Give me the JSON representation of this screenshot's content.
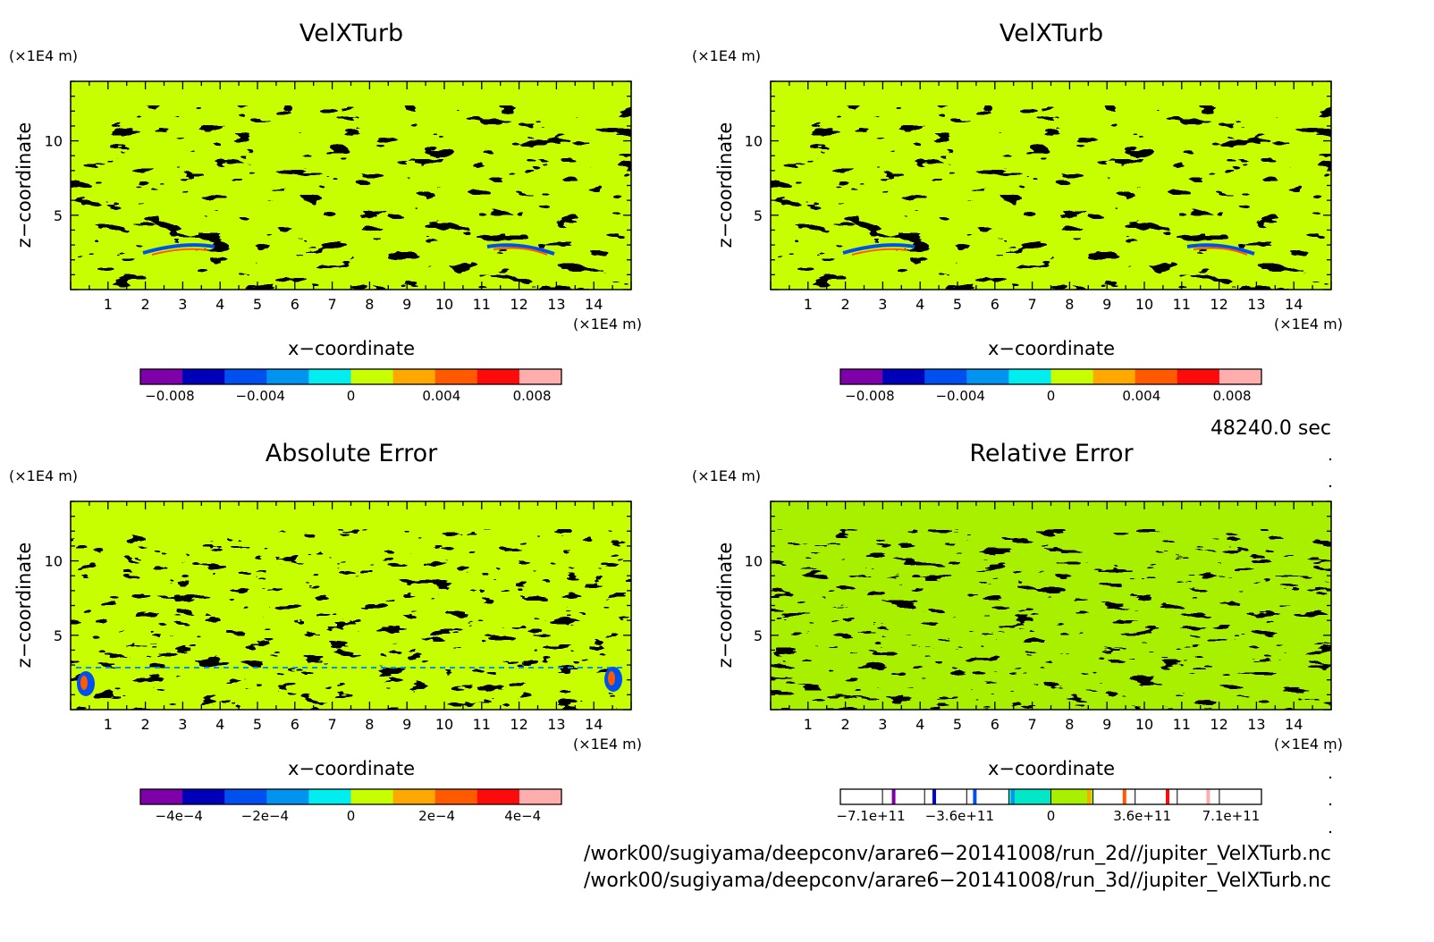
{
  "chart_data": [
    {
      "type": "heatmap",
      "title": "VelXTurb",
      "xlabel": "x−coordinate",
      "ylabel": "z−coordinate",
      "x_unit": "(×1E4 m)",
      "y_unit": "(×1E4 m)",
      "xlim": [
        0,
        15
      ],
      "ylim": [
        0,
        14
      ],
      "x_ticks": [
        "1",
        "2",
        "3",
        "4",
        "5",
        "6",
        "7",
        "8",
        "9",
        "10",
        "11",
        "12",
        "13",
        "14"
      ],
      "y_ticks": [
        "5",
        "10"
      ],
      "colorbar": {
        "ticks": [
          {
            "v": -0.008,
            "label": "−0.008"
          },
          {
            "v": -0.004,
            "label": "−0.004"
          },
          {
            "v": 0,
            "label": "0"
          },
          {
            "v": 0.004,
            "label": "0.004"
          },
          {
            "v": 0.008,
            "label": "0.008"
          }
        ],
        "range": [
          -0.0093,
          0.0093
        ],
        "colors": [
          "#7d00a8",
          "#0000b8",
          "#0050f0",
          "#0094f0",
          "#00eef0",
          "#c8ff00",
          "#ffa800",
          "#ff5a00",
          "#ff0a0a",
          "#ffadad"
        ]
      },
      "dominant_color": "#c8ff00",
      "secondary_color": "#00eef0"
    },
    {
      "type": "heatmap",
      "title": "VelXTurb",
      "xlabel": "x−coordinate",
      "ylabel": "z−coordinate",
      "x_unit": "(×1E4 m)",
      "y_unit": "(×1E4 m)",
      "xlim": [
        0,
        15
      ],
      "ylim": [
        0,
        14
      ],
      "x_ticks": [
        "1",
        "2",
        "3",
        "4",
        "5",
        "6",
        "7",
        "8",
        "9",
        "10",
        "11",
        "12",
        "13",
        "14"
      ],
      "y_ticks": [
        "5",
        "10"
      ],
      "colorbar": {
        "ticks": [
          {
            "v": -0.008,
            "label": "−0.008"
          },
          {
            "v": -0.004,
            "label": "−0.004"
          },
          {
            "v": 0,
            "label": "0"
          },
          {
            "v": 0.004,
            "label": "0.004"
          },
          {
            "v": 0.008,
            "label": "0.008"
          }
        ],
        "range": [
          -0.0093,
          0.0093
        ],
        "colors": [
          "#7d00a8",
          "#0000b8",
          "#0050f0",
          "#0094f0",
          "#00eef0",
          "#c8ff00",
          "#ffa800",
          "#ff5a00",
          "#ff0a0a",
          "#ffadad"
        ]
      },
      "dominant_color": "#c8ff00",
      "secondary_color": "#00eef0"
    },
    {
      "type": "heatmap",
      "title": "Absolute Error",
      "xlabel": "x−coordinate",
      "ylabel": "z−coordinate",
      "x_unit": "(×1E4 m)",
      "y_unit": "(×1E4 m)",
      "xlim": [
        0,
        15
      ],
      "ylim": [
        0,
        14
      ],
      "x_ticks": [
        "1",
        "2",
        "3",
        "4",
        "5",
        "6",
        "7",
        "8",
        "9",
        "10",
        "11",
        "12",
        "13",
        "14"
      ],
      "y_ticks": [
        "5",
        "10"
      ],
      "colorbar": {
        "ticks": [
          {
            "v": -0.0004,
            "label": "−4e−4"
          },
          {
            "v": -0.0002,
            "label": "−2e−4"
          },
          {
            "v": 0,
            "label": "0"
          },
          {
            "v": 0.0002,
            "label": "2e−4"
          },
          {
            "v": 0.0004,
            "label": "4e−4"
          }
        ],
        "range": [
          -0.00049,
          0.00049
        ],
        "colors": [
          "#7d00a8",
          "#0000b8",
          "#0050f0",
          "#0094f0",
          "#00eef0",
          "#c8ff00",
          "#ffa800",
          "#ff5a00",
          "#ff0a0a",
          "#ffadad"
        ]
      },
      "dominant_color": "#c8ff00",
      "secondary_color": "#00eef0"
    },
    {
      "type": "heatmap",
      "title": "Relative Error",
      "xlabel": "x−coordinate",
      "ylabel": "z−coordinate",
      "x_unit": "(×1E4 m)",
      "y_unit": "(×1E4 m)",
      "xlim": [
        0,
        15
      ],
      "ylim": [
        0,
        14
      ],
      "x_ticks": [
        "1",
        "2",
        "3",
        "4",
        "5",
        "6",
        "7",
        "8",
        "9",
        "10",
        "11",
        "12",
        "13",
        "14"
      ],
      "y_ticks": [
        "5",
        "10"
      ],
      "colorbar": {
        "ticks": [
          {
            "v": -710000000000.0,
            "label": "−7.1e+11"
          },
          {
            "v": -360000000000.0,
            "label": "−3.6e+11"
          },
          {
            "v": 0,
            "label": "0"
          },
          {
            "v": 360000000000.0,
            "label": "3.6e+11"
          },
          {
            "v": 710000000000.0,
            "label": "7.1e+11"
          }
        ],
        "range": [
          -830000000000.0,
          830000000000.0
        ],
        "colors": [
          "#ffffff",
          "#ffffff",
          "#ffffff",
          "#ffffff",
          "#00e8c8",
          "#a8f000",
          "#ffffff",
          "#ffffff",
          "#ffffff",
          "#ffffff"
        ],
        "markers": [
          {
            "v": -620000000000.0,
            "color": "#7d00a8"
          },
          {
            "v": -460000000000.0,
            "color": "#0000d8"
          },
          {
            "v": -300000000000.0,
            "color": "#0050f0"
          },
          {
            "v": -150000000000.0,
            "color": "#0094f0"
          },
          {
            "v": 150000000000.0,
            "color": "#ffa800"
          },
          {
            "v": 290000000000.0,
            "color": "#ff5a00"
          },
          {
            "v": 460000000000.0,
            "color": "#ff0a0a"
          },
          {
            "v": 620000000000.0,
            "color": "#ffadad"
          }
        ]
      },
      "dominant_color": "#a8f000",
      "secondary_color": "#00e8c8"
    }
  ],
  "time_label": "48240.0 sec",
  "file_paths": [
    "/work00/sugiyama/deepconv/arare6−20141008/run_2d//jupiter_VelXTurb.nc",
    "/work00/sugiyama/deepconv/arare6−20141008/run_3d//jupiter_VelXTurb.nc"
  ]
}
